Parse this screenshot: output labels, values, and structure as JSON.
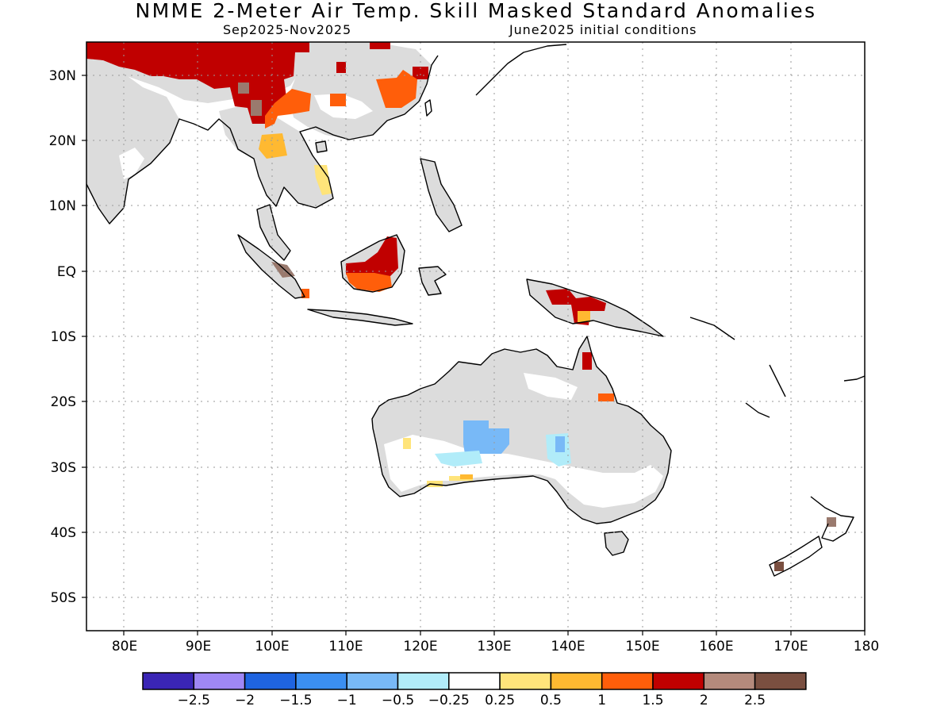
{
  "header": {
    "title": "NMME 2-Meter Air Temp. Skill Masked Standard Anomalies",
    "period": "Sep2025-Nov2025",
    "init": "June2025 initial conditions"
  },
  "map": {
    "lon_range": [
      75,
      180
    ],
    "lat_range": [
      -55,
      35
    ],
    "lon_labels": [
      "80E",
      "90E",
      "100E",
      "110E",
      "120E",
      "130E",
      "140E",
      "150E",
      "160E",
      "170E",
      "180"
    ],
    "lat_labels": [
      "30N",
      "20N",
      "10N",
      "EQ",
      "10S",
      "20S",
      "30S",
      "40S",
      "50S"
    ],
    "grid": "dotted",
    "masked_color": "#dcdcdc"
  },
  "legend": {
    "colors": [
      "#3a25b5",
      "#9f87f5",
      "#1f64e0",
      "#3b8ff2",
      "#78b9f7",
      "#b1ecf9",
      "#ffffff",
      "#ffe47a",
      "#ffb931",
      "#ff5e0a",
      "#c00000",
      "#b48a7c",
      "#7a4f40"
    ],
    "labels": [
      "−2.5",
      "−2",
      "−1.5",
      "−1",
      "−0.5",
      "−0.25",
      "0.25",
      "0.5",
      "1",
      "1.5",
      "2",
      "2.5"
    ]
  }
}
